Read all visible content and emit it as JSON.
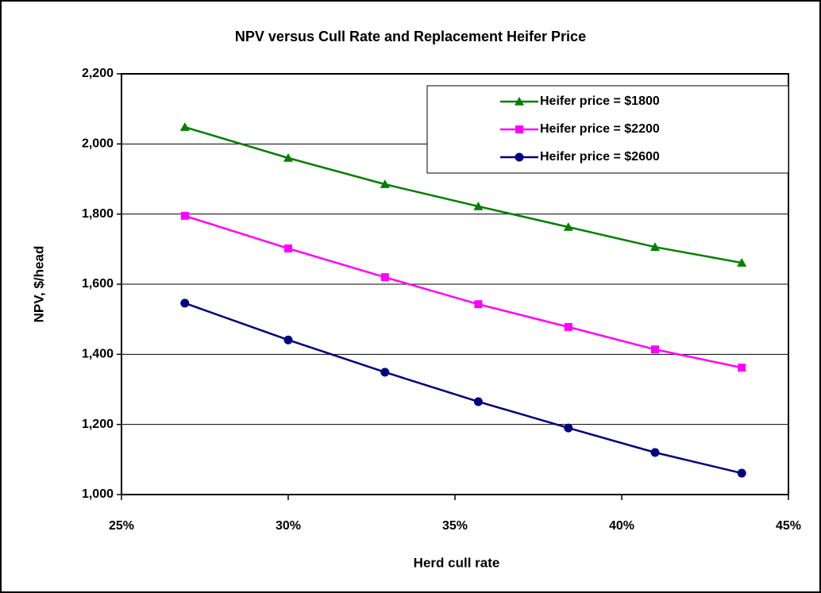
{
  "chart_data": {
    "type": "line",
    "title": "NPV versus Cull Rate and Replacement Heifer Price",
    "x_label": "Herd cull rate",
    "y_label": "NPV, $/head",
    "x": [
      26.9,
      30.0,
      32.9,
      35.7,
      38.4,
      41.0,
      43.6
    ],
    "series": [
      {
        "name": "Heifer price = $1800",
        "color": "#008000",
        "marker": "triangle",
        "values": [
          2048,
          1960,
          1885,
          1822,
          1763,
          1706,
          1661
        ]
      },
      {
        "name": "Heifer price = $2200",
        "color": "#ff00ff",
        "marker": "square",
        "values": [
          1795,
          1702,
          1620,
          1543,
          1478,
          1414,
          1362
        ]
      },
      {
        "name": "Heifer price = $2600",
        "color": "#000080",
        "marker": "circle",
        "values": [
          1546,
          1441,
          1349,
          1265,
          1190,
          1120,
          1061
        ]
      }
    ],
    "xlim": [
      25,
      45
    ],
    "xticks": [
      {
        "value": 25,
        "label": "25%"
      },
      {
        "value": 30,
        "label": "30%"
      },
      {
        "value": 35,
        "label": "35%"
      },
      {
        "value": 40,
        "label": "40%"
      },
      {
        "value": 45,
        "label": "45%"
      }
    ],
    "ylim": [
      1000,
      2200
    ],
    "yticks": [
      {
        "value": 1000,
        "label": "1,000"
      },
      {
        "value": 1200,
        "label": "1,200"
      },
      {
        "value": 1400,
        "label": "1,400"
      },
      {
        "value": 1600,
        "label": "1,600"
      },
      {
        "value": 1800,
        "label": "1,800"
      },
      {
        "value": 2000,
        "label": "2,000"
      },
      {
        "value": 2200,
        "label": "2,200"
      }
    ],
    "grid": true,
    "legend": "upper-right"
  }
}
